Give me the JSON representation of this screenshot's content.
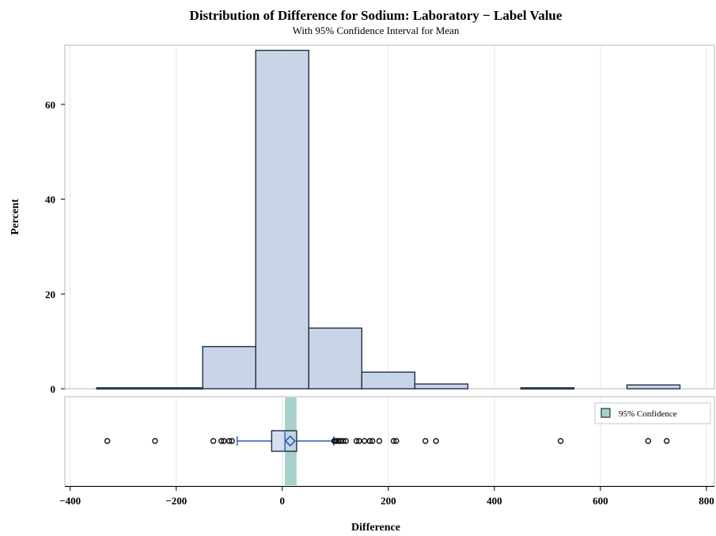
{
  "chart_data": {
    "type": "bar",
    "title": "Distribution of Difference for Sodium: Laboratory − Label Value",
    "subtitle": "With 95% Confidence Interval for Mean",
    "xlabel": "Difference",
    "ylabel": "Percent",
    "xlim": [
      -410,
      815
    ],
    "ylim": [
      0,
      72.5
    ],
    "x_ticks": [
      -400,
      -200,
      0,
      200,
      400,
      600,
      800
    ],
    "x_tick_labels": [
      "−400",
      "−200",
      "0",
      "200",
      "400",
      "600",
      "800"
    ],
    "y_ticks": [
      0,
      20,
      40,
      60
    ],
    "y_tick_labels": [
      "0",
      "20",
      "40",
      "60"
    ],
    "grid": true,
    "histogram": {
      "bins": [
        {
          "x0": -350,
          "x1": -150,
          "percent": 0.2
        },
        {
          "x0": -150,
          "x1": -50,
          "percent": 8.9
        },
        {
          "x0": -50,
          "x1": 50,
          "percent": 71.4
        },
        {
          "x0": 50,
          "x1": 150,
          "percent": 12.8
        },
        {
          "x0": 150,
          "x1": 250,
          "percent": 3.5
        },
        {
          "x0": 250,
          "x1": 350,
          "percent": 1.0
        },
        {
          "x0": 450,
          "x1": 550,
          "percent": 0.2
        },
        {
          "x0": 650,
          "x1": 750,
          "percent": 0.8
        }
      ],
      "fill": "#c8d5e6",
      "stroke": "#1f2f45"
    },
    "boxplot": {
      "q1": -20,
      "median": 5,
      "q3": 27,
      "mean": 15,
      "whisker_low": -85,
      "whisker_high": 97,
      "outliers": [
        -330,
        -240,
        -130,
        -115,
        -110,
        -100,
        -95,
        98,
        100,
        103,
        106,
        110,
        115,
        120,
        140,
        145,
        155,
        165,
        170,
        183,
        210,
        215,
        270,
        290,
        525,
        690,
        725
      ],
      "box_fill": "#c8d5e6",
      "box_stroke": "#1f2f45",
      "accent": "#3355bb"
    },
    "confidence_interval": {
      "low": 5,
      "high": 27,
      "color": "#a9d1cc"
    },
    "legend": {
      "label": "95% Confidence",
      "position": "top-right"
    }
  }
}
